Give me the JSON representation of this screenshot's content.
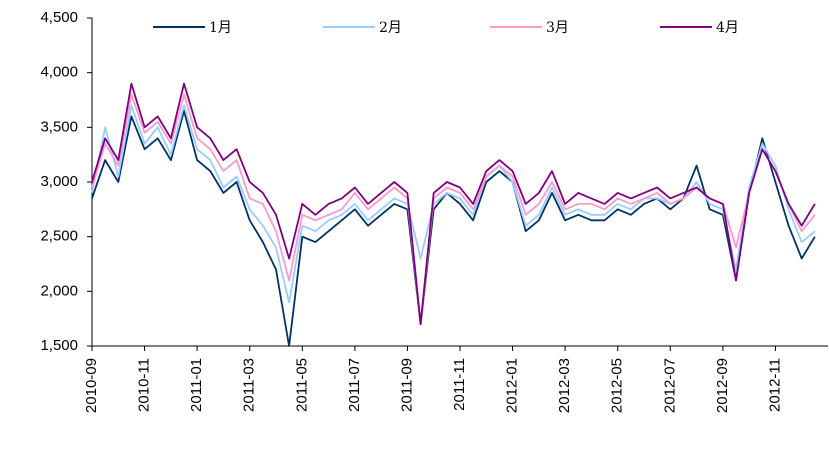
{
  "chart_data": {
    "type": "line",
    "categories": [
      "2010-09",
      null,
      null,
      null,
      "2010-11",
      null,
      null,
      null,
      "2011-01",
      null,
      null,
      null,
      "2011-03",
      null,
      null,
      null,
      "2011-05",
      null,
      null,
      null,
      "2011-07",
      null,
      null,
      null,
      "2011-09",
      null,
      null,
      null,
      "2011-11",
      null,
      null,
      null,
      "2012-01",
      null,
      null,
      null,
      "2012-03",
      null,
      null,
      null,
      "2012-05",
      null,
      null,
      null,
      "2012-07",
      null,
      null,
      null,
      "2012-09",
      null,
      null,
      null,
      "2012-11",
      null,
      null,
      null
    ],
    "series": [
      {
        "name": "1月",
        "color": "#003366",
        "values": [
          2850,
          3200,
          3000,
          3600,
          3300,
          3400,
          3200,
          3650,
          3200,
          3100,
          2900,
          3000,
          2650,
          2450,
          2200,
          1500,
          2500,
          2450,
          2550,
          2650,
          2750,
          2600,
          2700,
          2800,
          2750,
          1700,
          2750,
          2900,
          2800,
          2650,
          3000,
          3100,
          3000,
          2550,
          2650,
          2900,
          2650,
          2700,
          2650,
          2650,
          2750,
          2700,
          2800,
          2850,
          2750,
          2850,
          3150,
          2750,
          2700,
          2100,
          2900,
          3400,
          3000,
          2600,
          2300,
          2500
        ]
      },
      {
        "name": "2月",
        "color": "#99ccff",
        "values": [
          2900,
          3500,
          3050,
          3700,
          3350,
          3500,
          3250,
          3700,
          3300,
          3200,
          2950,
          3050,
          2750,
          2600,
          2400,
          1900,
          2600,
          2550,
          2650,
          2700,
          2800,
          2650,
          2750,
          2850,
          2800,
          2300,
          2800,
          2900,
          2850,
          2700,
          3050,
          3150,
          3000,
          2600,
          2700,
          2950,
          2700,
          2750,
          2700,
          2700,
          2800,
          2750,
          2850,
          2850,
          2800,
          2850,
          3000,
          2800,
          2750,
          2200,
          2950,
          3350,
          3150,
          2750,
          2450,
          2550
        ]
      },
      {
        "name": "3月",
        "color": "#ff99cc",
        "values": [
          2950,
          3350,
          3150,
          3800,
          3450,
          3550,
          3350,
          3800,
          3400,
          3300,
          3100,
          3200,
          2850,
          2800,
          2550,
          2100,
          2700,
          2650,
          2700,
          2750,
          2900,
          2750,
          2850,
          2950,
          2850,
          1700,
          2850,
          2950,
          2900,
          2750,
          3050,
          3150,
          3050,
          2700,
          2800,
          3000,
          2750,
          2800,
          2800,
          2750,
          2850,
          2800,
          2850,
          2900,
          2800,
          2850,
          2950,
          2850,
          2800,
          2400,
          2900,
          3300,
          3100,
          2800,
          2550,
          2700
        ]
      },
      {
        "name": "4月",
        "color": "#800080",
        "values": [
          3000,
          3400,
          3200,
          3900,
          3500,
          3600,
          3400,
          3900,
          3500,
          3400,
          3200,
          3300,
          3000,
          2900,
          2700,
          2300,
          2800,
          2700,
          2800,
          2850,
          2950,
          2800,
          2900,
          3000,
          2900,
          1700,
          2900,
          3000,
          2950,
          2800,
          3100,
          3200,
          3100,
          2800,
          2900,
          3100,
          2800,
          2900,
          2850,
          2800,
          2900,
          2850,
          2900,
          2950,
          2850,
          2900,
          2950,
          2850,
          2800,
          2100,
          2900,
          3300,
          3100,
          2800,
          2600,
          2800
        ]
      }
    ],
    "ylim": [
      1500,
      4500
    ],
    "yticks": [
      {
        "value": 1500,
        "label": "1,500"
      },
      {
        "value": 2000,
        "label": "2,000"
      },
      {
        "value": 2500,
        "label": "2,500"
      },
      {
        "value": 3000,
        "label": "3,000"
      },
      {
        "value": 3500,
        "label": "3,500"
      },
      {
        "value": 4000,
        "label": "4,000"
      },
      {
        "value": 4500,
        "label": "4,500"
      }
    ],
    "grid": false,
    "legend": "top"
  }
}
